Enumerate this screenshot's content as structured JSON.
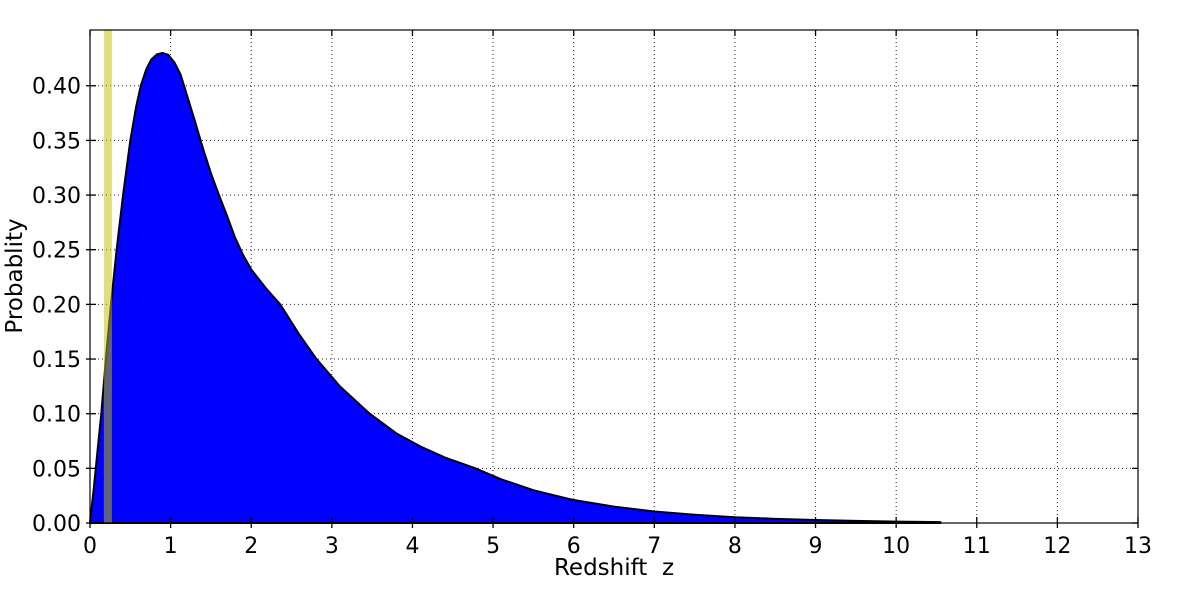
{
  "figure": {
    "background": "#ffffff",
    "plot_bg": "#ffffff",
    "spine_color": "#000000",
    "grid_color": "#000000",
    "text_color": "#000000"
  },
  "chart_data": {
    "type": "area",
    "title": "",
    "xlabel": "Redshift  z",
    "ylabel": "Probablity",
    "xlim": [
      0,
      13
    ],
    "ylim": [
      0,
      0.451
    ],
    "grid": "dotted, on, both axes at major ticks",
    "legend": "none",
    "xticks": {
      "values": [
        0,
        1,
        2,
        3,
        4,
        5,
        6,
        7,
        8,
        9,
        10,
        11,
        12,
        13
      ],
      "labels": [
        "0",
        "1",
        "2",
        "3",
        "4",
        "5",
        "6",
        "7",
        "8",
        "9",
        "10",
        "11",
        "12",
        "13"
      ]
    },
    "yticks": {
      "values": [
        0.0,
        0.05,
        0.1,
        0.15,
        0.2,
        0.25,
        0.3,
        0.35,
        0.4
      ],
      "labels": [
        "0.00",
        "0.05",
        "0.10",
        "0.15",
        "0.20",
        "0.25",
        "0.30",
        "0.35",
        "0.40"
      ]
    },
    "series": [
      {
        "name": "redshift-probability-pdf",
        "style": "filled curve, black edge",
        "fill_color": "#0000ff",
        "edge_color": "#000000",
        "edge_width": 2,
        "peak": {
          "z": 0.9,
          "p": 0.43
        },
        "points": [
          [
            0,
            0
          ],
          [
            0.05,
            0.034
          ],
          [
            0.1,
            0.071
          ],
          [
            0.14,
            0.1
          ],
          [
            0.2,
            0.153
          ],
          [
            0.26,
            0.2
          ],
          [
            0.33,
            0.25
          ],
          [
            0.41,
            0.3
          ],
          [
            0.5,
            0.35
          ],
          [
            0.57,
            0.38
          ],
          [
            0.63,
            0.4
          ],
          [
            0.7,
            0.4155
          ],
          [
            0.76,
            0.424
          ],
          [
            0.83,
            0.4287
          ],
          [
            0.9,
            0.43
          ],
          [
            0.97,
            0.4283
          ],
          [
            1.05,
            0.421
          ],
          [
            1.125,
            0.41
          ],
          [
            1.2,
            0.392
          ],
          [
            1.3,
            0.368
          ],
          [
            1.4,
            0.343
          ],
          [
            1.5,
            0.32
          ],
          [
            1.6,
            0.3
          ],
          [
            1.7,
            0.281
          ],
          [
            1.8,
            0.261
          ],
          [
            1.9,
            0.245
          ],
          [
            2.0,
            0.232
          ],
          [
            2.18,
            0.215
          ],
          [
            2.36,
            0.2
          ],
          [
            2.6,
            0.172
          ],
          [
            2.81,
            0.15
          ],
          [
            3.1,
            0.125
          ],
          [
            3.47,
            0.1
          ],
          [
            3.8,
            0.082
          ],
          [
            4.1,
            0.07
          ],
          [
            4.4,
            0.06
          ],
          [
            4.78,
            0.05
          ],
          [
            5.1,
            0.04
          ],
          [
            5.5,
            0.03
          ],
          [
            6.0,
            0.021
          ],
          [
            6.5,
            0.015
          ],
          [
            7.0,
            0.0105
          ],
          [
            7.5,
            0.0075
          ],
          [
            8.0,
            0.0053
          ],
          [
            8.5,
            0.0038
          ],
          [
            9.0,
            0.0027
          ],
          [
            9.5,
            0.0019
          ],
          [
            10.0,
            0.0013
          ],
          [
            10.3,
            0.001
          ],
          [
            10.55,
            0.0008
          ]
        ]
      }
    ],
    "annotations": [
      {
        "name": "redshift-marker-band",
        "type": "vertical-band",
        "z0": 0.172,
        "z1": 0.272,
        "color": "#bfbf00",
        "alpha": 0.5,
        "meaning": "vertical highlight line at z ≈ 0.22 spanning full plot height"
      }
    ]
  }
}
